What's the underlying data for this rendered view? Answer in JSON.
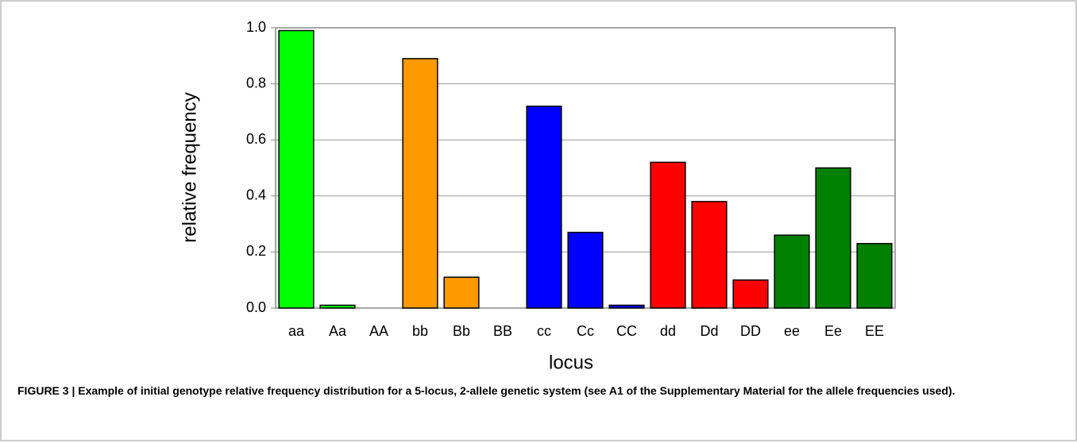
{
  "chart_data": {
    "type": "bar",
    "xlabel": "locus",
    "ylabel": "relative frequency",
    "categories": [
      "aa",
      "Aa",
      "AA",
      "bb",
      "Bb",
      "BB",
      "cc",
      "Cc",
      "CC",
      "dd",
      "Dd",
      "DD",
      "ee",
      "Ee",
      "EE"
    ],
    "values": [
      0.99,
      0.01,
      0,
      0.89,
      0.11,
      0,
      0.72,
      0.27,
      0.01,
      0.52,
      0.38,
      0.1,
      0.26,
      0.5,
      0.23
    ],
    "colors": [
      "#00ff00",
      "#00ff00",
      "#00ff00",
      "#ff9900",
      "#ff9900",
      "#ff9900",
      "#0000ff",
      "#0000ff",
      "#0000ff",
      "#ff0000",
      "#ff0000",
      "#ff0000",
      "#008000",
      "#008000",
      "#008000"
    ],
    "ylim": [
      0,
      1
    ],
    "yticks": [
      {
        "value": 0,
        "label": "0.0"
      },
      0.2,
      0.4,
      0.6,
      0.8,
      {
        "value": 1,
        "label": "1.0"
      }
    ],
    "grid": true
  },
  "caption": "FIGURE 3 | Example of initial genotype relative frequency distribution for a 5-locus, 2-allele genetic system (see A1 of the Supplementary Material for the allele frequencies used)."
}
